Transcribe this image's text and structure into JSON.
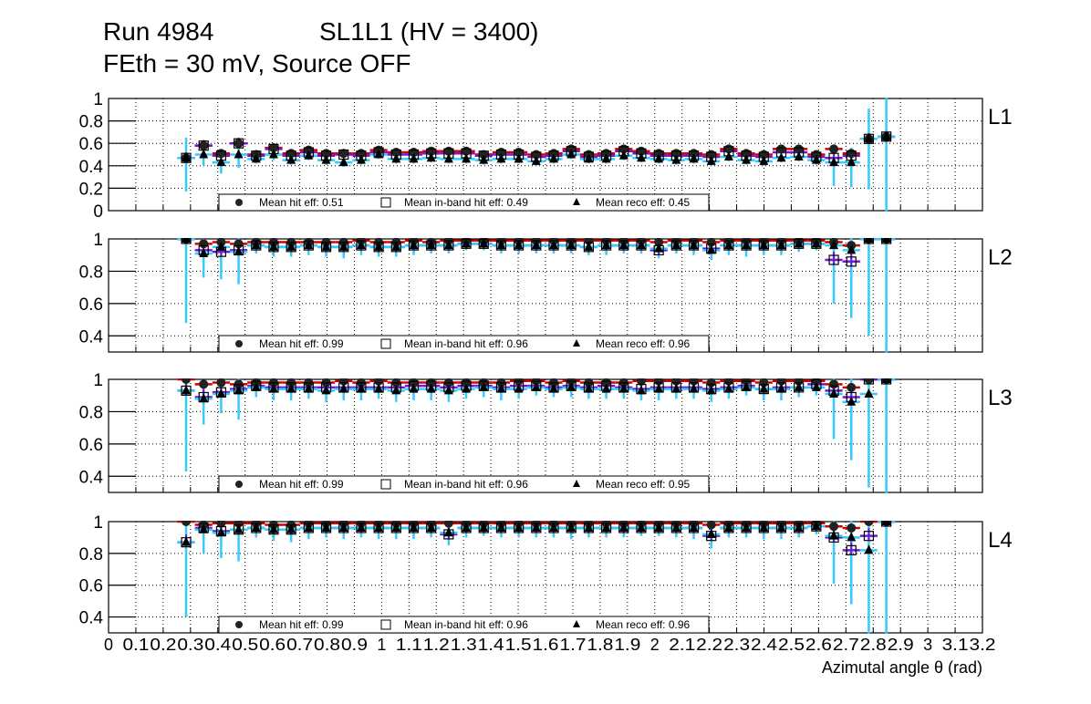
{
  "header": {
    "run": "Run 4984",
    "chamber": "SL1L1 (HV = 3400)",
    "conditions": "FEth = 30 mV, Source OFF"
  },
  "colors": {
    "hit": "#d40000",
    "inband": "#7316d9",
    "reco": "#33ccff",
    "marker": "#000000"
  },
  "chart_data": {
    "type": "scatter",
    "xlabel": "Azimutal angle θ (rad)",
    "xlim": [
      0,
      3.2
    ],
    "x_tick_labels": [
      "0",
      "0.1",
      "0.2",
      "0.3",
      "0.4",
      "0.5",
      "0.6",
      "0.7",
      "0.8",
      "0.9",
      "1",
      "1.1",
      "1.2",
      "1.3",
      "1.4",
      "1.5",
      "1.6",
      "1.7",
      "1.8",
      "1.9",
      "2",
      "2.1",
      "2.2",
      "2.3",
      "2.4",
      "2.5",
      "2.6",
      "2.7",
      "2.8",
      "2.9",
      "3",
      "3.1",
      "3.2"
    ],
    "grid": true,
    "x_first": 0.284,
    "x_step": 0.0641,
    "n_points": 41,
    "panels": [
      {
        "label": "L1",
        "ylim": [
          0,
          1
        ],
        "y_tick_labels": [
          "0",
          "0.2",
          "0.4",
          "0.6",
          "0.8",
          "1"
        ],
        "y_ticks": [
          0,
          0.2,
          0.4,
          0.6,
          0.8,
          1
        ],
        "legend": {
          "hit": "Mean hit  eff: 0.51",
          "inband": "Mean in-band hit eff: 0.49",
          "reco": "Mean reco eff: 0.45"
        },
        "series": [
          {
            "name": "hit",
            "values": [
              0.47,
              0.58,
              0.51,
              0.6,
              0.5,
              0.56,
              0.51,
              0.54,
              0.51,
              0.51,
              0.51,
              0.54,
              0.52,
              0.52,
              0.53,
              0.53,
              0.53,
              0.5,
              0.52,
              0.52,
              0.5,
              0.51,
              0.55,
              0.5,
              0.51,
              0.55,
              0.53,
              0.51,
              0.51,
              0.51,
              0.5,
              0.55,
              0.51,
              0.5,
              0.55,
              0.55,
              0.5,
              0.55,
              0.51,
              0.64,
              0.66
            ]
          },
          {
            "name": "inband",
            "values": [
              0.47,
              0.58,
              0.49,
              0.6,
              0.49,
              0.55,
              0.49,
              0.52,
              0.49,
              0.5,
              0.49,
              0.52,
              0.5,
              0.5,
              0.51,
              0.51,
              0.51,
              0.49,
              0.5,
              0.5,
              0.48,
              0.49,
              0.53,
              0.48,
              0.49,
              0.53,
              0.51,
              0.49,
              0.49,
              0.49,
              0.48,
              0.53,
              0.49,
              0.48,
              0.52,
              0.52,
              0.48,
              0.47,
              0.49,
              0.64,
              0.66
            ]
          },
          {
            "name": "reco",
            "values": [
              0.47,
              0.5,
              0.43,
              0.5,
              0.46,
              0.5,
              0.45,
              0.49,
              0.45,
              0.43,
              0.45,
              0.5,
              0.46,
              0.46,
              0.47,
              0.46,
              0.46,
              0.45,
              0.46,
              0.46,
              0.44,
              0.46,
              0.5,
              0.46,
              0.46,
              0.49,
              0.47,
              0.46,
              0.45,
              0.46,
              0.44,
              0.48,
              0.45,
              0.44,
              0.47,
              0.48,
              0.45,
              0.43,
              0.43,
              0.64,
              0.66
            ]
          }
        ],
        "reco_errors": [
          0.3,
          0.1,
          0.1,
          0.12,
          0.04,
          0.05,
          0.04,
          0.04,
          0.04,
          0.04,
          0.04,
          0.04,
          0.04,
          0.04,
          0.04,
          0.04,
          0.04,
          0.04,
          0.04,
          0.04,
          0.04,
          0.04,
          0.04,
          0.04,
          0.04,
          0.04,
          0.04,
          0.04,
          0.04,
          0.04,
          0.04,
          0.04,
          0.04,
          0.04,
          0.04,
          0.04,
          0.04,
          0.21,
          0.22,
          0.45,
          0.7
        ]
      },
      {
        "label": "L2",
        "ylim": [
          0.3,
          1
        ],
        "y_tick_labels": [
          "0.4",
          "0.6",
          "0.8",
          "1"
        ],
        "y_ticks": [
          0.4,
          0.6,
          0.8,
          1
        ],
        "legend": {
          "hit": "Mean hit  eff: 0.99",
          "inband": "Mean in-band hit eff: 0.96",
          "reco": "Mean reco eff: 0.96"
        },
        "series": [
          {
            "name": "hit",
            "values": [
              1.0,
              0.97,
              0.98,
              0.97,
              0.98,
              0.98,
              0.98,
              0.98,
              0.98,
              0.98,
              0.99,
              0.98,
              0.98,
              0.99,
              0.98,
              0.99,
              0.99,
              0.99,
              0.99,
              0.99,
              0.99,
              0.99,
              0.99,
              0.99,
              0.99,
              0.99,
              0.99,
              0.98,
              0.99,
              0.99,
              0.98,
              0.99,
              0.99,
              0.99,
              0.99,
              0.99,
              0.99,
              0.98,
              0.96,
              1.0,
              1.0
            ]
          },
          {
            "name": "inband",
            "values": [
              1.0,
              0.93,
              0.92,
              0.93,
              0.96,
              0.95,
              0.95,
              0.96,
              0.95,
              0.95,
              0.96,
              0.95,
              0.95,
              0.96,
              0.96,
              0.96,
              0.97,
              0.97,
              0.96,
              0.96,
              0.96,
              0.96,
              0.96,
              0.95,
              0.96,
              0.96,
              0.96,
              0.93,
              0.96,
              0.96,
              0.94,
              0.96,
              0.96,
              0.96,
              0.96,
              0.97,
              0.97,
              0.87,
              0.86,
              1.0,
              1.0
            ]
          },
          {
            "name": "reco",
            "values": [
              1.0,
              0.91,
              0.95,
              0.92,
              0.96,
              0.95,
              0.95,
              0.96,
              0.95,
              0.95,
              0.96,
              0.95,
              0.95,
              0.96,
              0.96,
              0.96,
              0.97,
              0.97,
              0.96,
              0.96,
              0.96,
              0.96,
              0.96,
              0.95,
              0.96,
              0.96,
              0.96,
              0.94,
              0.96,
              0.96,
              0.93,
              0.96,
              0.96,
              0.96,
              0.96,
              0.97,
              0.97,
              0.96,
              0.93,
              1.0,
              1.0
            ]
          }
        ],
        "reco_errors": [
          0.52,
          0.15,
          0.2,
          0.2,
          0.05,
          0.06,
          0.06,
          0.06,
          0.06,
          0.07,
          0.06,
          0.06,
          0.06,
          0.06,
          0.05,
          0.05,
          0.04,
          0.04,
          0.05,
          0.05,
          0.05,
          0.05,
          0.05,
          0.05,
          0.06,
          0.05,
          0.05,
          0.06,
          0.05,
          0.06,
          0.06,
          0.06,
          0.07,
          0.06,
          0.06,
          0.05,
          0.04,
          0.36,
          0.42,
          0.6,
          0.72
        ]
      },
      {
        "label": "L3",
        "ylim": [
          0.3,
          1
        ],
        "y_tick_labels": [
          "0.4",
          "0.6",
          "0.8",
          "1"
        ],
        "y_ticks": [
          0.4,
          0.6,
          0.8,
          1
        ],
        "legend": {
          "hit": "Mean hit  eff: 0.99",
          "inband": "Mean in-band hit eff: 0.96",
          "reco": "Mean reco eff: 0.95"
        },
        "series": [
          {
            "name": "hit",
            "values": [
              1.0,
              0.97,
              0.98,
              0.97,
              0.98,
              0.98,
              0.98,
              0.98,
              0.98,
              0.99,
              0.98,
              0.99,
              0.98,
              0.98,
              0.98,
              0.98,
              0.98,
              0.98,
              0.98,
              0.99,
              0.99,
              0.98,
              0.99,
              0.98,
              0.98,
              0.98,
              0.99,
              0.99,
              0.99,
              0.99,
              0.98,
              0.99,
              0.99,
              0.98,
              0.99,
              0.99,
              0.99,
              0.97,
              0.95,
              1.0,
              1.0
            ]
          },
          {
            "name": "inband",
            "values": [
              0.93,
              0.89,
              0.92,
              0.94,
              0.96,
              0.95,
              0.95,
              0.95,
              0.95,
              0.95,
              0.95,
              0.95,
              0.95,
              0.96,
              0.96,
              0.95,
              0.96,
              0.96,
              0.95,
              0.96,
              0.96,
              0.95,
              0.96,
              0.95,
              0.96,
              0.95,
              0.94,
              0.95,
              0.95,
              0.95,
              0.94,
              0.95,
              0.96,
              0.94,
              0.95,
              0.95,
              0.97,
              0.93,
              0.89,
              1.0,
              1.0
            ]
          },
          {
            "name": "reco",
            "values": [
              0.93,
              0.88,
              0.91,
              0.93,
              0.95,
              0.94,
              0.94,
              0.94,
              0.93,
              0.94,
              0.94,
              0.94,
              0.93,
              0.94,
              0.94,
              0.93,
              0.94,
              0.95,
              0.94,
              0.94,
              0.95,
              0.94,
              0.95,
              0.94,
              0.94,
              0.94,
              0.93,
              0.94,
              0.94,
              0.94,
              0.93,
              0.94,
              0.95,
              0.94,
              0.94,
              0.95,
              0.95,
              0.91,
              0.86,
              0.91,
              1.0
            ]
          }
        ],
        "reco_errors": [
          0.5,
          0.16,
          0.12,
          0.18,
          0.06,
          0.07,
          0.07,
          0.06,
          0.07,
          0.07,
          0.07,
          0.06,
          0.07,
          0.07,
          0.07,
          0.07,
          0.06,
          0.06,
          0.07,
          0.06,
          0.05,
          0.05,
          0.06,
          0.06,
          0.06,
          0.06,
          0.06,
          0.07,
          0.06,
          0.06,
          0.07,
          0.06,
          0.05,
          0.07,
          0.07,
          0.06,
          0.05,
          0.28,
          0.36,
          0.58,
          0.72
        ]
      },
      {
        "label": "L4",
        "ylim": [
          0.3,
          1
        ],
        "y_tick_labels": [
          "0.4",
          "0.6",
          "0.8",
          "1"
        ],
        "y_ticks": [
          0.4,
          0.6,
          0.8,
          1
        ],
        "legend": {
          "hit": "Mean hit  eff: 0.99",
          "inband": "Mean in-band hit eff: 0.96",
          "reco": "Mean reco eff: 0.96"
        },
        "series": [
          {
            "name": "hit",
            "values": [
              1.0,
              0.98,
              0.99,
              0.99,
              0.99,
              0.98,
              0.98,
              0.99,
              0.99,
              0.99,
              0.99,
              0.99,
              0.99,
              0.99,
              0.99,
              0.99,
              0.99,
              0.99,
              0.99,
              0.99,
              0.99,
              0.99,
              0.99,
              0.99,
              0.99,
              0.99,
              0.99,
              0.99,
              0.99,
              0.99,
              0.98,
              0.99,
              0.99,
              0.99,
              0.99,
              0.99,
              0.99,
              0.97,
              0.96,
              1.0,
              1.0
            ]
          },
          {
            "name": "inband",
            "values": [
              0.87,
              0.96,
              0.94,
              0.95,
              0.96,
              0.95,
              0.95,
              0.96,
              0.96,
              0.96,
              0.96,
              0.96,
              0.96,
              0.96,
              0.96,
              0.92,
              0.96,
              0.96,
              0.96,
              0.96,
              0.96,
              0.96,
              0.96,
              0.96,
              0.96,
              0.96,
              0.96,
              0.96,
              0.96,
              0.96,
              0.91,
              0.96,
              0.96,
              0.96,
              0.96,
              0.96,
              0.97,
              0.9,
              0.82,
              0.91,
              1.0
            ]
          },
          {
            "name": "reco",
            "values": [
              0.87,
              0.95,
              0.93,
              0.95,
              0.96,
              0.95,
              0.95,
              0.96,
              0.96,
              0.96,
              0.96,
              0.96,
              0.96,
              0.96,
              0.96,
              0.93,
              0.96,
              0.96,
              0.96,
              0.96,
              0.96,
              0.96,
              0.96,
              0.96,
              0.96,
              0.96,
              0.96,
              0.96,
              0.96,
              0.96,
              0.92,
              0.96,
              0.96,
              0.96,
              0.96,
              0.96,
              0.97,
              0.91,
              0.9,
              0.82,
              1.0
            ]
          }
        ],
        "reco_errors": [
          0.47,
          0.15,
          0.16,
          0.2,
          0.06,
          0.07,
          0.08,
          0.07,
          0.06,
          0.07,
          0.06,
          0.07,
          0.07,
          0.07,
          0.06,
          0.08,
          0.06,
          0.05,
          0.06,
          0.06,
          0.06,
          0.06,
          0.07,
          0.06,
          0.06,
          0.06,
          0.05,
          0.05,
          0.06,
          0.07,
          0.09,
          0.06,
          0.06,
          0.07,
          0.07,
          0.06,
          0.05,
          0.3,
          0.42,
          0.6,
          0.72
        ]
      }
    ]
  }
}
